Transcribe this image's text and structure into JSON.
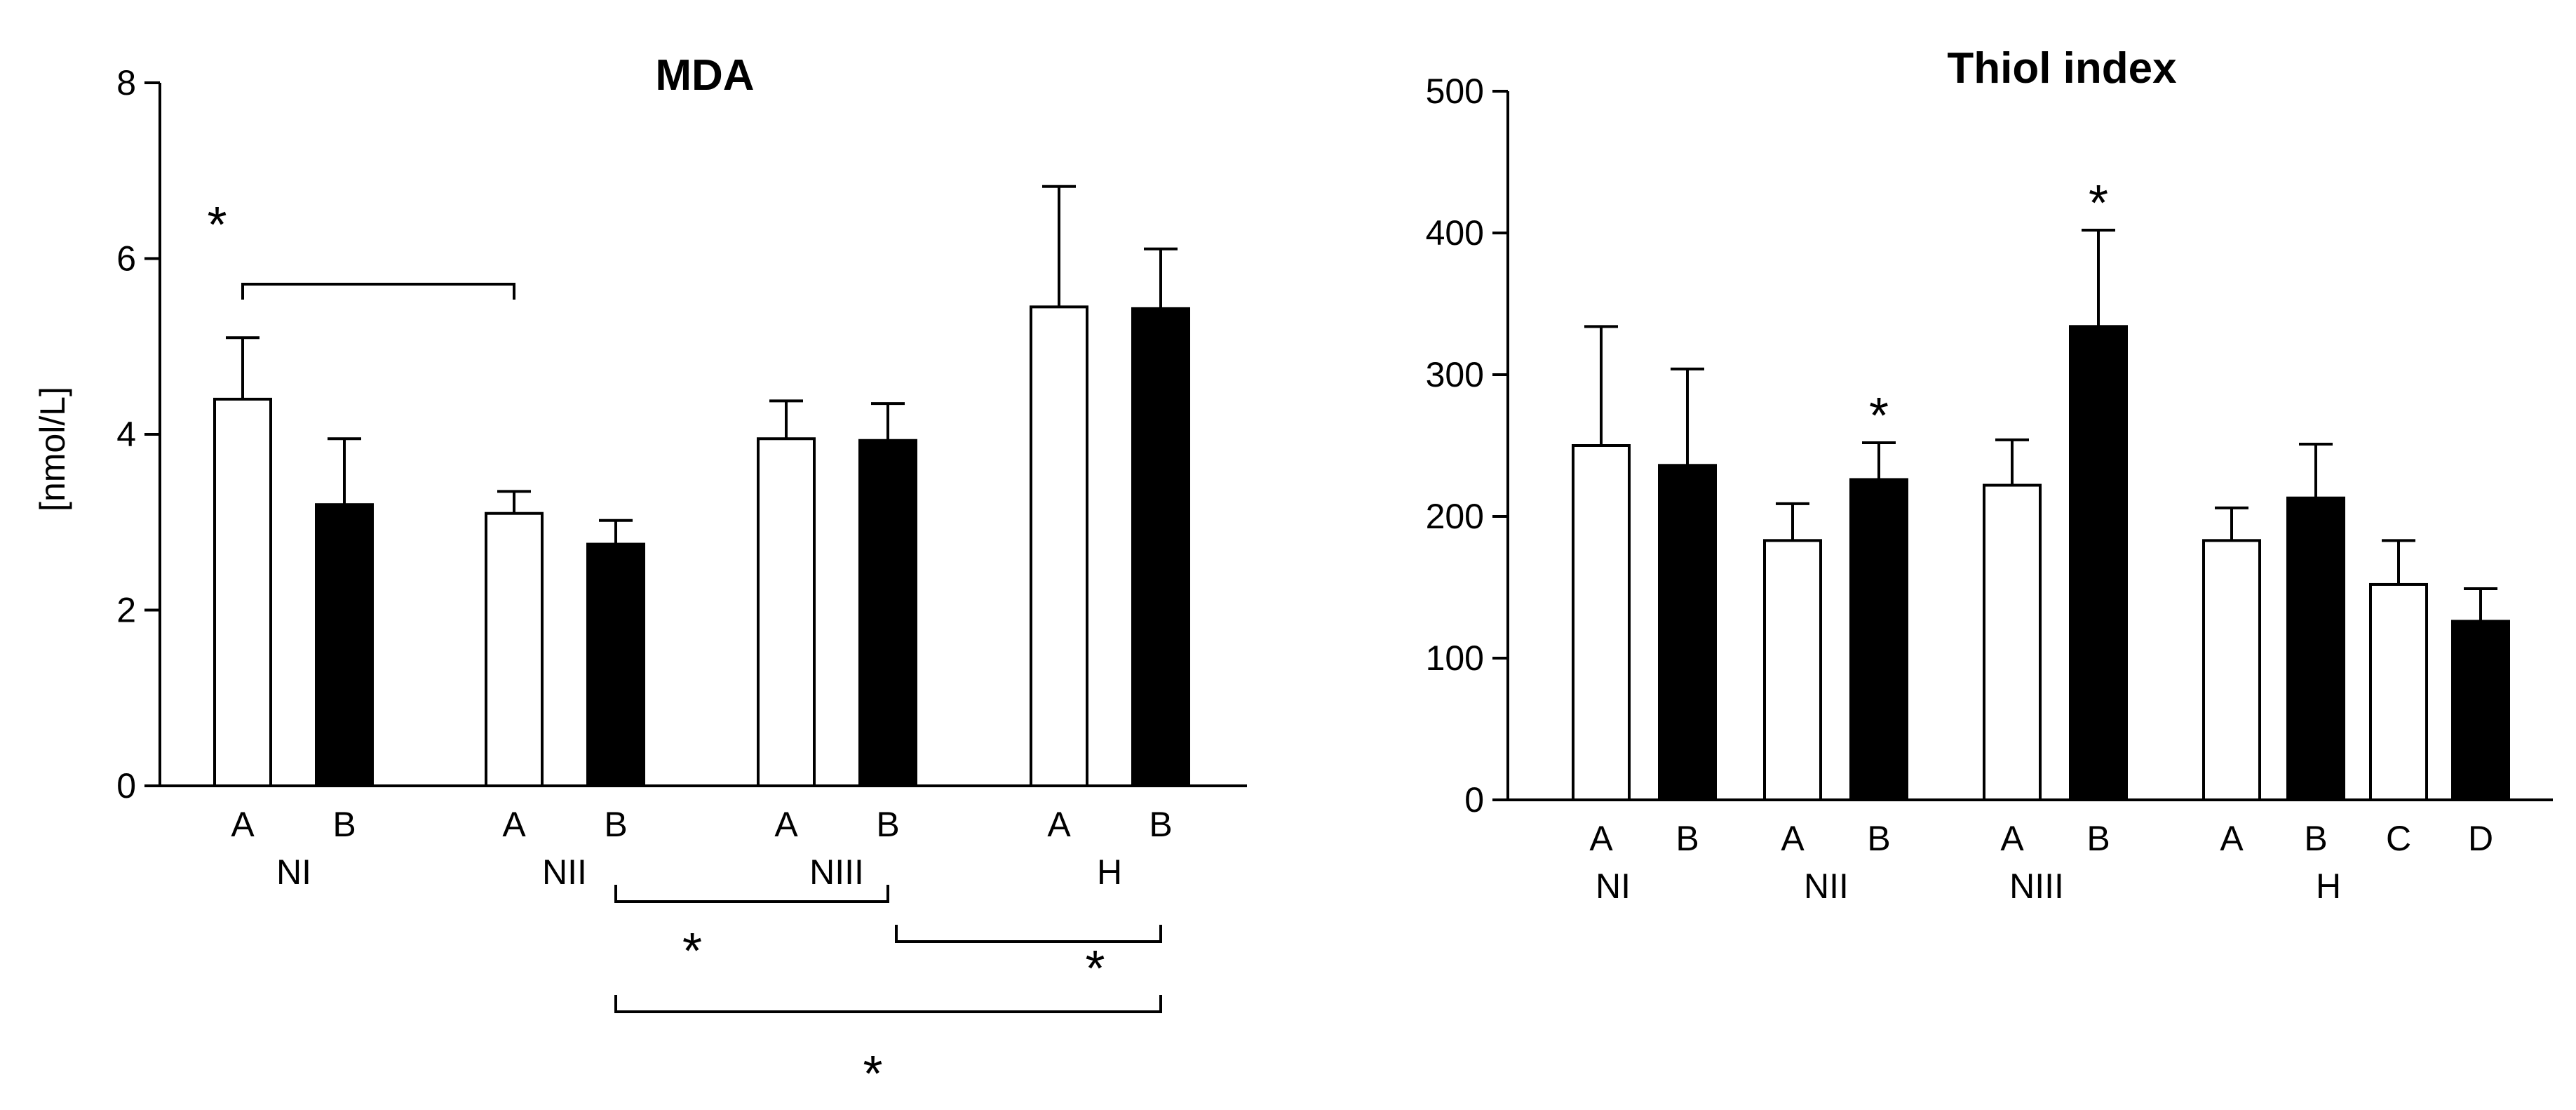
{
  "chart_data": [
    {
      "type": "bar",
      "title": "MDA",
      "ylabel": "[nmol/L]",
      "xlabel": "",
      "ylim": [
        0,
        8
      ],
      "yticks": [
        0,
        2,
        4,
        6,
        8
      ],
      "groups": [
        {
          "name": "NI",
          "bars": [
            {
              "label": "A",
              "value": 4.4,
              "error": 0.7,
              "fill": "white"
            },
            {
              "label": "B",
              "value": 3.2,
              "error": 0.75,
              "fill": "black"
            }
          ]
        },
        {
          "name": "NII",
          "bars": [
            {
              "label": "A",
              "value": 3.1,
              "error": 0.25,
              "fill": "white"
            },
            {
              "label": "B",
              "value": 2.75,
              "error": 0.27,
              "fill": "black"
            }
          ]
        },
        {
          "name": "NIII",
          "bars": [
            {
              "label": "A",
              "value": 3.95,
              "error": 0.43,
              "fill": "white"
            },
            {
              "label": "B",
              "value": 3.93,
              "error": 0.42,
              "fill": "black"
            }
          ]
        },
        {
          "name": "H",
          "bars": [
            {
              "label": "A",
              "value": 5.45,
              "error": 1.37,
              "fill": "white"
            },
            {
              "label": "B",
              "value": 5.43,
              "error": 0.68,
              "fill": "black"
            }
          ]
        }
      ],
      "significance": [
        {
          "from": "NI A",
          "to": "NII A",
          "label": "*",
          "side": "above"
        },
        {
          "from": "NII B",
          "to": "NIII B",
          "label": "*",
          "side": "below"
        },
        {
          "from": "NIII B",
          "to": "H B",
          "label": "*",
          "side": "below"
        },
        {
          "from": "NII B",
          "to": "H B",
          "label": "*",
          "side": "below"
        }
      ]
    },
    {
      "type": "bar",
      "title": "Thiol index",
      "ylabel": "",
      "xlabel": "",
      "ylim": [
        0,
        500
      ],
      "yticks": [
        0,
        100,
        200,
        300,
        400,
        500
      ],
      "groups": [
        {
          "name": "NI",
          "bars": [
            {
              "label": "A",
              "value": 250,
              "error": 84,
              "fill": "white"
            },
            {
              "label": "B",
              "value": 236,
              "error": 68,
              "fill": "black"
            }
          ]
        },
        {
          "name": "NII",
          "bars": [
            {
              "label": "A",
              "value": 183,
              "error": 26,
              "fill": "white"
            },
            {
              "label": "B",
              "value": 226,
              "error": 26,
              "fill": "black",
              "star": "*"
            }
          ]
        },
        {
          "name": "NIII",
          "bars": [
            {
              "label": "A",
              "value": 222,
              "error": 32,
              "fill": "white"
            },
            {
              "label": "B",
              "value": 334,
              "error": 68,
              "fill": "black",
              "star": "*"
            }
          ]
        },
        {
          "name": "H",
          "bars": [
            {
              "label": "A",
              "value": 183,
              "error": 23,
              "fill": "white"
            },
            {
              "label": "B",
              "value": 213,
              "error": 38,
              "fill": "black"
            },
            {
              "label": "C",
              "value": 152,
              "error": 31,
              "fill": "white"
            },
            {
              "label": "D",
              "value": 126,
              "error": 23,
              "fill": "black"
            }
          ]
        }
      ]
    }
  ]
}
